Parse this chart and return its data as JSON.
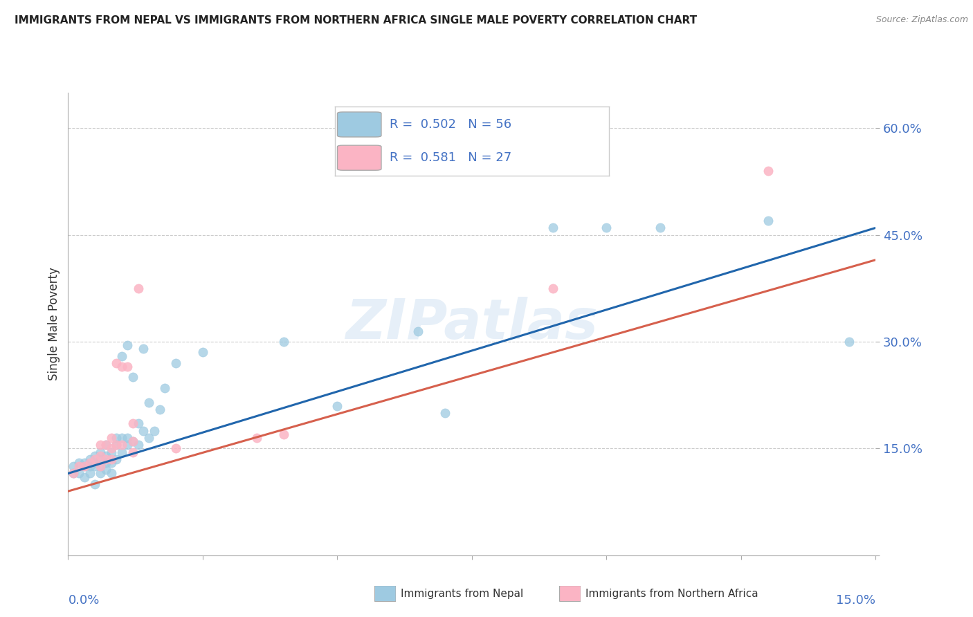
{
  "title": "IMMIGRANTS FROM NEPAL VS IMMIGRANTS FROM NORTHERN AFRICA SINGLE MALE POVERTY CORRELATION CHART",
  "source": "Source: ZipAtlas.com",
  "ylabel": "Single Male Poverty",
  "ytick_labels": [
    "",
    "15.0%",
    "30.0%",
    "45.0%",
    "60.0%"
  ],
  "yticks": [
    0.0,
    0.15,
    0.3,
    0.45,
    0.6
  ],
  "xlim": [
    0.0,
    0.15
  ],
  "ylim": [
    0.0,
    0.65
  ],
  "nepal_color": "#9ecae1",
  "nafrica_color": "#fbb4c4",
  "nepal_line_color": "#2166ac",
  "nafrica_line_color": "#d6604d",
  "r_nepal": 0.502,
  "n_nepal": 56,
  "r_nafrica": 0.581,
  "n_nafrica": 27,
  "nepal_scatter": [
    [
      0.001,
      0.115
    ],
    [
      0.001,
      0.125
    ],
    [
      0.002,
      0.115
    ],
    [
      0.002,
      0.13
    ],
    [
      0.003,
      0.11
    ],
    [
      0.003,
      0.125
    ],
    [
      0.003,
      0.13
    ],
    [
      0.004,
      0.115
    ],
    [
      0.004,
      0.125
    ],
    [
      0.004,
      0.135
    ],
    [
      0.005,
      0.1
    ],
    [
      0.005,
      0.125
    ],
    [
      0.005,
      0.13
    ],
    [
      0.005,
      0.14
    ],
    [
      0.006,
      0.115
    ],
    [
      0.006,
      0.125
    ],
    [
      0.006,
      0.135
    ],
    [
      0.006,
      0.145
    ],
    [
      0.007,
      0.12
    ],
    [
      0.007,
      0.13
    ],
    [
      0.007,
      0.14
    ],
    [
      0.007,
      0.155
    ],
    [
      0.008,
      0.115
    ],
    [
      0.008,
      0.13
    ],
    [
      0.008,
      0.145
    ],
    [
      0.009,
      0.135
    ],
    [
      0.009,
      0.155
    ],
    [
      0.009,
      0.165
    ],
    [
      0.01,
      0.145
    ],
    [
      0.01,
      0.165
    ],
    [
      0.01,
      0.28
    ],
    [
      0.011,
      0.155
    ],
    [
      0.011,
      0.165
    ],
    [
      0.011,
      0.295
    ],
    [
      0.012,
      0.16
    ],
    [
      0.012,
      0.25
    ],
    [
      0.013,
      0.155
    ],
    [
      0.013,
      0.185
    ],
    [
      0.014,
      0.175
    ],
    [
      0.014,
      0.29
    ],
    [
      0.015,
      0.165
    ],
    [
      0.015,
      0.215
    ],
    [
      0.016,
      0.175
    ],
    [
      0.017,
      0.205
    ],
    [
      0.018,
      0.235
    ],
    [
      0.02,
      0.27
    ],
    [
      0.025,
      0.285
    ],
    [
      0.04,
      0.3
    ],
    [
      0.05,
      0.21
    ],
    [
      0.065,
      0.315
    ],
    [
      0.07,
      0.2
    ],
    [
      0.09,
      0.46
    ],
    [
      0.1,
      0.46
    ],
    [
      0.11,
      0.46
    ],
    [
      0.13,
      0.47
    ],
    [
      0.145,
      0.3
    ]
  ],
  "nafrica_scatter": [
    [
      0.001,
      0.115
    ],
    [
      0.002,
      0.125
    ],
    [
      0.003,
      0.125
    ],
    [
      0.004,
      0.13
    ],
    [
      0.005,
      0.135
    ],
    [
      0.006,
      0.125
    ],
    [
      0.006,
      0.14
    ],
    [
      0.006,
      0.155
    ],
    [
      0.007,
      0.135
    ],
    [
      0.007,
      0.155
    ],
    [
      0.008,
      0.135
    ],
    [
      0.008,
      0.15
    ],
    [
      0.008,
      0.165
    ],
    [
      0.009,
      0.155
    ],
    [
      0.009,
      0.27
    ],
    [
      0.01,
      0.155
    ],
    [
      0.01,
      0.265
    ],
    [
      0.011,
      0.265
    ],
    [
      0.012,
      0.145
    ],
    [
      0.012,
      0.16
    ],
    [
      0.012,
      0.185
    ],
    [
      0.013,
      0.375
    ],
    [
      0.02,
      0.15
    ],
    [
      0.035,
      0.165
    ],
    [
      0.04,
      0.17
    ],
    [
      0.09,
      0.375
    ],
    [
      0.13,
      0.54
    ]
  ],
  "nepal_trendline": [
    0.0,
    0.115,
    0.15,
    0.46
  ],
  "nafrica_trendline": [
    0.0,
    0.09,
    0.15,
    0.415
  ],
  "watermark": "ZIPatlas",
  "background_color": "#ffffff",
  "grid_color": "#cccccc",
  "legend_box_color": "#f5f5f5",
  "legend_border_color": "#cccccc"
}
